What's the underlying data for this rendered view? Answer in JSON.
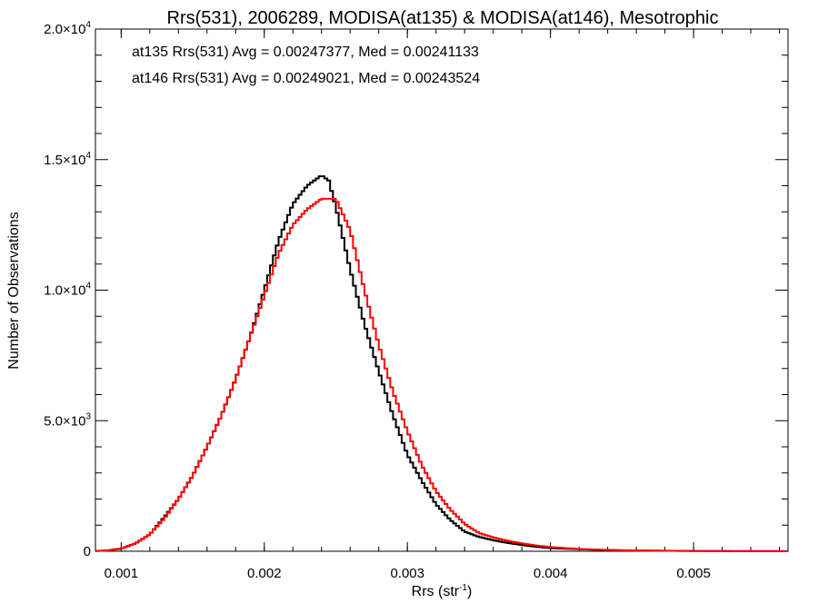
{
  "chart_data": {
    "type": "line",
    "title": "Rrs(531), 2006289, MODISA(at135) & MODISA(at146), Mesotrophic",
    "xlabel": "Rrs (str",
    "xlabel_sup": "-1",
    "xlabel_close": ")",
    "ylabel": "Number of Observations",
    "xlim": [
      0.00082,
      0.00566
    ],
    "ylim": [
      0,
      20000
    ],
    "x_ticks": [
      {
        "value": 0.001,
        "label": "0.001"
      },
      {
        "value": 0.002,
        "label": "0.002"
      },
      {
        "value": 0.003,
        "label": "0.003"
      },
      {
        "value": 0.004,
        "label": "0.004"
      },
      {
        "value": 0.005,
        "label": "0.005"
      }
    ],
    "y_ticks": [
      {
        "value": 0,
        "mantissa": "0",
        "exp": ""
      },
      {
        "value": 5000,
        "mantissa": "5.0×10",
        "exp": "3"
      },
      {
        "value": 10000,
        "mantissa": "1.0×10",
        "exp": "4"
      },
      {
        "value": 15000,
        "mantissa": "1.5×10",
        "exp": "4"
      },
      {
        "value": 20000,
        "mantissa": "2.0×10",
        "exp": "4"
      }
    ],
    "annotations": [
      {
        "text": "at135 Rrs(531) Avg = 0.00247377, Med = 0.00241133",
        "color": "#000000"
      },
      {
        "text": "at146 Rrs(531) Avg = 0.00249021, Med = 0.00243524",
        "color": "#ff0000"
      }
    ],
    "series": [
      {
        "color": "#000000",
        "x": [
          0.00082,
          0.0009,
          0.001,
          0.0011,
          0.0012,
          0.0013,
          0.0014,
          0.0015,
          0.0016,
          0.0017,
          0.0018,
          0.0019,
          0.002,
          0.0021,
          0.0022,
          0.0023,
          0.0024,
          0.00245,
          0.0025,
          0.0026,
          0.0027,
          0.0028,
          0.0029,
          0.003,
          0.0031,
          0.0032,
          0.0033,
          0.0034,
          0.0035,
          0.0036,
          0.0037,
          0.0038,
          0.0039,
          0.004,
          0.0042,
          0.0044,
          0.0046,
          0.0048,
          0.005,
          0.0053,
          0.00566
        ],
        "y": [
          10,
          30,
          100,
          300,
          650,
          1300,
          2000,
          2900,
          4000,
          5200,
          6600,
          8200,
          10000,
          11900,
          13300,
          14000,
          14400,
          14200,
          13200,
          10800,
          8700,
          6900,
          5200,
          3700,
          2700,
          1800,
          1200,
          750,
          550,
          420,
          320,
          240,
          170,
          120,
          75,
          45,
          28,
          18,
          10,
          5,
          2
        ]
      },
      {
        "color": "#ff0000",
        "x": [
          0.00082,
          0.0009,
          0.001,
          0.0011,
          0.0012,
          0.0013,
          0.0014,
          0.0015,
          0.0016,
          0.0017,
          0.0018,
          0.0019,
          0.002,
          0.0021,
          0.0022,
          0.0023,
          0.0024,
          0.0025,
          0.0026,
          0.0027,
          0.0028,
          0.0029,
          0.003,
          0.0031,
          0.0032,
          0.0033,
          0.0034,
          0.0035,
          0.0036,
          0.0037,
          0.0038,
          0.0039,
          0.004,
          0.0042,
          0.0044,
          0.0046,
          0.0048,
          0.005,
          0.0053,
          0.00566
        ],
        "y": [
          10,
          30,
          100,
          300,
          650,
          1250,
          2000,
          2900,
          4000,
          5200,
          6600,
          8200,
          9800,
          11400,
          12500,
          13100,
          13500,
          13500,
          12300,
          10000,
          7900,
          6100,
          4600,
          3300,
          2300,
          1600,
          1050,
          700,
          530,
          400,
          300,
          220,
          160,
          85,
          50,
          30,
          20,
          12,
          6,
          3
        ]
      }
    ]
  }
}
